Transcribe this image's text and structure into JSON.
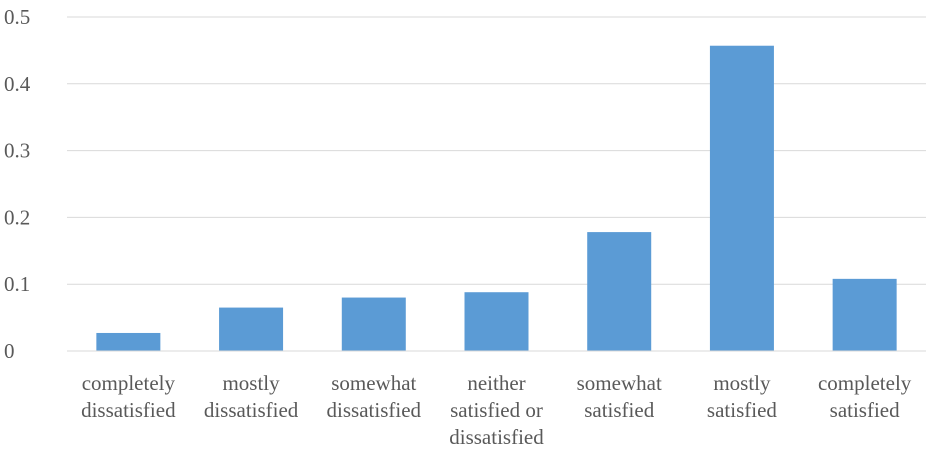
{
  "chart_data": {
    "type": "bar",
    "title": "",
    "xlabel": "",
    "ylabel": "",
    "categories": [
      [
        "completely",
        "dissatisfied"
      ],
      [
        "mostly",
        "dissatisfied"
      ],
      [
        "somewhat",
        "dissatisfied"
      ],
      [
        "neither",
        "satisfied or",
        "dissatisfied"
      ],
      [
        "somewhat",
        "satisfied"
      ],
      [
        "mostly",
        "satisfied"
      ],
      [
        "completely",
        "satisfied"
      ]
    ],
    "values": [
      0.027,
      0.065,
      0.08,
      0.088,
      0.178,
      0.457,
      0.108
    ],
    "ylim": [
      0,
      0.5
    ],
    "yticks": [
      "0",
      "0.1",
      "0.2",
      "0.3",
      "0.4",
      "0.5"
    ],
    "grid": true,
    "legend": "none",
    "bar_color": "#5b9bd5"
  }
}
